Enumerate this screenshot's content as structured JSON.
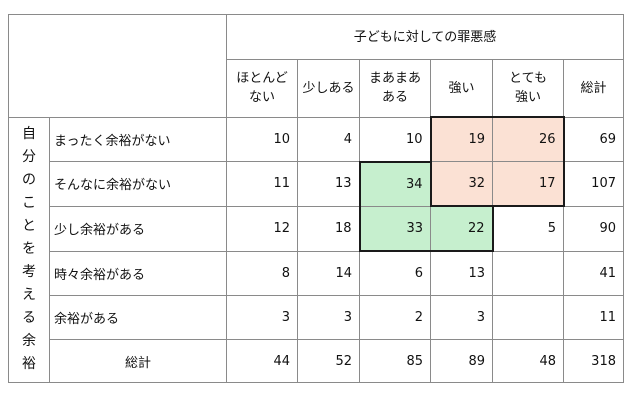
{
  "table": {
    "group_header": "子どもに対しての罪悪感",
    "row_group_label": "自分のことを考える余裕",
    "columns": [
      "ほとんど\nない",
      "少しある",
      "まあまあ\nある",
      "強い",
      "とても\n強い",
      "総計"
    ],
    "highlight_colors": {
      "pink": "#fbe1d4",
      "green": "#c6efce",
      "border": "#1a1a1a"
    },
    "rows": [
      {
        "label": "まったく余裕がない",
        "values": [
          "10",
          "4",
          "10",
          "19",
          "26",
          "69"
        ]
      },
      {
        "label": "そんなに余裕がない",
        "values": [
          "11",
          "13",
          "34",
          "32",
          "17",
          "107"
        ]
      },
      {
        "label": "少し余裕がある",
        "values": [
          "12",
          "18",
          "33",
          "22",
          "5",
          "90"
        ]
      },
      {
        "label": "時々余裕がある",
        "values": [
          "8",
          "14",
          "6",
          "13",
          "",
          "41"
        ]
      },
      {
        "label": "余裕がある",
        "values": [
          "3",
          "3",
          "2",
          "3",
          "",
          "11"
        ]
      }
    ],
    "total_row": {
      "label": "総計",
      "values": [
        "44",
        "52",
        "85",
        "89",
        "48",
        "318"
      ]
    }
  }
}
